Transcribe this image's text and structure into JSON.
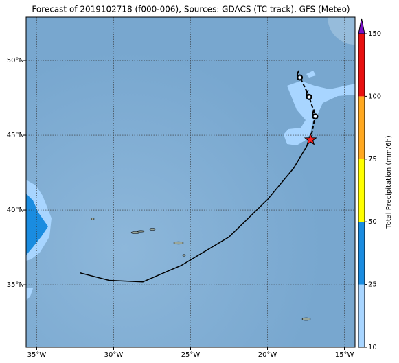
{
  "chart_data": {
    "type": "map",
    "title": "Forecast of 2019102718 (f000-006), Sources: GDACS (TC track), GFS (Meteo)",
    "xlim": [
      -35.69,
      -14.31
    ],
    "ylim": [
      30.83,
      52.89
    ],
    "xticks": [
      {
        "value": -35,
        "label": "35°W"
      },
      {
        "value": -30,
        "label": "30°W"
      },
      {
        "value": -25,
        "label": "25°W"
      },
      {
        "value": -20,
        "label": "20°W"
      },
      {
        "value": -15,
        "label": "15°W"
      }
    ],
    "yticks": [
      {
        "value": 35,
        "label": "35°N"
      },
      {
        "value": 40,
        "label": "40°N"
      },
      {
        "value": 45,
        "label": "45°N"
      },
      {
        "value": 50,
        "label": "50°N"
      }
    ],
    "grid": true,
    "colorbar": {
      "label": "Total Precipitation (mm/6h)",
      "ticks": [
        10,
        25,
        50,
        75,
        100,
        150
      ],
      "colors": [
        "#a8d5ff",
        "#1a8ce0",
        "#ffff00",
        "#ffa820",
        "#e81010"
      ],
      "extend_color": "#7a10c8"
    },
    "track": {
      "lon": [
        -32.2,
        -30.3,
        -28.1,
        -25.6,
        -22.5,
        -20.0,
        -18.3,
        -17.2
      ],
      "lat": [
        35.8,
        35.3,
        35.2,
        36.3,
        38.2,
        40.7,
        42.8,
        44.7
      ],
      "color": "#000000"
    },
    "forecast": {
      "lon": [
        -17.2,
        -16.9,
        -17.3,
        -17.9
      ],
      "lat": [
        44.7,
        46.3,
        47.6,
        48.9
      ],
      "color": "#000000"
    }
  }
}
